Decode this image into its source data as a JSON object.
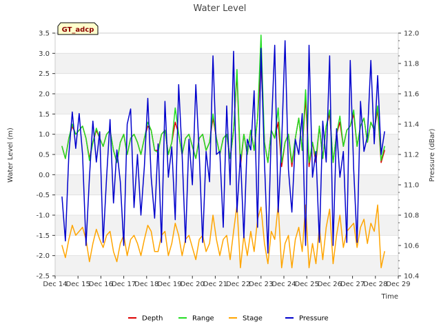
{
  "chart_data": {
    "type": "line",
    "title": "Water Level",
    "xlabel": "Time",
    "ylabel": "Water Level (m)",
    "y2label": "Pressure (dBar)",
    "badge": "GT_adcp",
    "xlim": [
      14,
      29
    ],
    "ylim": [
      -2.5,
      3.5
    ],
    "y2lim": [
      10.4,
      12.0
    ],
    "xticks": [
      14,
      15,
      16,
      17,
      18,
      19,
      20,
      21,
      22,
      23,
      24,
      25,
      26,
      27,
      28,
      29
    ],
    "xtick_labels": [
      "Dec 14",
      "Dec 15",
      "Dec 16",
      "Dec 17",
      "Dec 18",
      "Dec 19",
      "Dec 20",
      "Dec 21",
      "Dec 22",
      "Dec 23",
      "Dec 24",
      "Dec 25",
      "Dec 26",
      "Dec 27",
      "Dec 28",
      "Dec 29"
    ],
    "yticks": [
      -2.5,
      -2.0,
      -1.5,
      -1.0,
      -0.5,
      0.0,
      0.5,
      1.0,
      1.5,
      2.0,
      2.5,
      3.0,
      3.5
    ],
    "ytick_labels": [
      "-2.5",
      "-2.0",
      "-1.5",
      "-1.0",
      "-0.5",
      "0.0",
      "0.5",
      "1.0",
      "1.5",
      "2.0",
      "2.5",
      "3.0",
      "3.5"
    ],
    "y2ticks": [
      10.4,
      10.6,
      10.8,
      11.0,
      11.2,
      11.4,
      11.6,
      11.8,
      12.0
    ],
    "y2tick_labels": [
      "10.4",
      "10.6",
      "10.8",
      "11.0",
      "11.2",
      "11.4",
      "11.6",
      "11.8",
      "12.0"
    ],
    "legend_position": "bottom-center",
    "series": [
      {
        "name": "Depth",
        "color": "#dd0000",
        "axis": "left",
        "x": [
          14.3,
          14.45,
          14.6,
          14.75,
          14.9,
          15.05,
          15.2,
          15.35,
          15.5,
          15.65,
          15.8,
          15.95,
          16.1,
          16.25,
          16.4,
          16.55,
          16.7,
          16.85,
          17.0,
          17.15,
          17.3,
          17.45,
          17.6,
          17.75,
          17.9,
          18.05,
          18.2,
          18.35,
          18.5,
          18.65,
          18.8,
          18.95,
          19.1,
          19.25,
          19.4,
          19.55,
          19.7,
          19.85,
          20.0,
          20.15,
          20.3,
          20.45,
          20.6,
          20.75,
          20.9,
          21.05,
          21.2,
          21.35,
          21.5,
          21.65,
          21.8,
          21.95,
          22.1,
          22.25,
          22.4,
          22.55,
          22.7,
          22.85,
          23.0,
          23.15,
          23.3,
          23.45,
          23.6,
          23.75,
          23.9,
          24.05,
          24.2,
          24.35,
          24.5,
          24.65,
          24.8,
          24.95,
          25.1,
          25.25,
          25.4,
          25.55,
          25.7,
          25.85,
          26.0,
          26.15,
          26.3,
          26.45,
          26.6,
          26.75,
          26.9,
          27.05,
          27.2,
          27.35,
          27.5,
          27.65,
          27.8,
          27.95,
          28.1,
          28.25,
          28.4
        ],
        "y": [
          0.7,
          0.4,
          0.9,
          1.2,
          1.0,
          1.1,
          1.2,
          0.9,
          0.4,
          0.8,
          1.1,
          0.9,
          0.7,
          1.0,
          1.1,
          0.6,
          0.3,
          0.8,
          1.0,
          0.5,
          0.9,
          1.0,
          0.8,
          0.5,
          0.9,
          1.2,
          1.1,
          0.6,
          0.6,
          1.0,
          1.1,
          0.5,
          0.8,
          1.3,
          1.0,
          0.5,
          0.9,
          1.0,
          0.7,
          0.4,
          0.9,
          1.0,
          0.6,
          0.8,
          1.4,
          0.9,
          0.5,
          0.9,
          1.0,
          0.4,
          1.1,
          2.5,
          0.2,
          1.0,
          0.5,
          1.1,
          0.6,
          1.4,
          2.8,
          0.8,
          0.3,
          1.1,
          0.9,
          1.3,
          0.2,
          0.8,
          1.0,
          0.2,
          0.9,
          1.4,
          0.6,
          1.9,
          0.2,
          0.8,
          0.3,
          1.2,
          0.4,
          1.2,
          1.5,
          0.3,
          1.0,
          1.3,
          0.7,
          1.1,
          1.2,
          1.5,
          0.7,
          1.2,
          1.4,
          0.8,
          1.3,
          1.1,
          1.6,
          0.3,
          0.6
        ]
      },
      {
        "name": "Range",
        "color": "#22dd22",
        "axis": "left",
        "x": [
          14.3,
          14.45,
          14.6,
          14.75,
          14.9,
          15.05,
          15.2,
          15.35,
          15.5,
          15.65,
          15.8,
          15.95,
          16.1,
          16.25,
          16.4,
          16.55,
          16.7,
          16.85,
          17.0,
          17.15,
          17.3,
          17.45,
          17.6,
          17.75,
          17.9,
          18.05,
          18.2,
          18.35,
          18.5,
          18.65,
          18.8,
          18.95,
          19.1,
          19.25,
          19.4,
          19.55,
          19.7,
          19.85,
          20.0,
          20.15,
          20.3,
          20.45,
          20.6,
          20.75,
          20.9,
          21.05,
          21.2,
          21.35,
          21.5,
          21.65,
          21.8,
          21.95,
          22.1,
          22.25,
          22.4,
          22.55,
          22.7,
          22.85,
          23.0,
          23.15,
          23.3,
          23.45,
          23.6,
          23.75,
          23.9,
          24.05,
          24.2,
          24.35,
          24.5,
          24.65,
          24.8,
          24.95,
          25.1,
          25.25,
          25.4,
          25.55,
          25.7,
          25.85,
          26.0,
          26.15,
          26.3,
          26.45,
          26.6,
          26.75,
          26.9,
          27.05,
          27.2,
          27.35,
          27.5,
          27.65,
          27.8,
          27.95,
          28.1,
          28.25,
          28.4
        ],
        "y": [
          0.7,
          0.4,
          0.9,
          1.25,
          1.0,
          1.1,
          1.2,
          0.9,
          0.35,
          0.8,
          1.15,
          0.9,
          0.7,
          1.0,
          1.1,
          0.6,
          0.3,
          0.8,
          1.0,
          0.5,
          0.9,
          1.0,
          0.8,
          0.5,
          0.9,
          1.3,
          1.1,
          0.6,
          0.55,
          1.0,
          1.1,
          0.5,
          0.8,
          1.65,
          1.0,
          0.5,
          0.9,
          1.0,
          0.7,
          0.4,
          0.9,
          1.0,
          0.6,
          0.8,
          1.5,
          0.9,
          0.5,
          0.9,
          1.0,
          0.4,
          1.1,
          2.6,
          0.3,
          1.0,
          0.5,
          1.1,
          0.6,
          1.4,
          3.45,
          0.8,
          0.3,
          1.1,
          0.9,
          1.65,
          0.3,
          0.8,
          1.0,
          0.3,
          0.9,
          1.4,
          0.6,
          2.1,
          0.3,
          0.8,
          0.4,
          1.2,
          0.4,
          1.2,
          1.6,
          0.3,
          1.0,
          1.45,
          0.7,
          1.1,
          1.2,
          1.6,
          0.7,
          1.2,
          1.4,
          0.8,
          1.3,
          1.1,
          1.7,
          0.35,
          0.7
        ]
      },
      {
        "name": "Stage",
        "color": "#ffa500",
        "axis": "left",
        "x": [
          14.3,
          14.45,
          14.6,
          14.75,
          14.9,
          15.05,
          15.2,
          15.35,
          15.5,
          15.65,
          15.8,
          15.95,
          16.1,
          16.25,
          16.4,
          16.55,
          16.7,
          16.85,
          17.0,
          17.15,
          17.3,
          17.45,
          17.6,
          17.75,
          17.9,
          18.05,
          18.2,
          18.35,
          18.5,
          18.65,
          18.8,
          18.95,
          19.1,
          19.25,
          19.4,
          19.55,
          19.7,
          19.85,
          20.0,
          20.15,
          20.3,
          20.45,
          20.6,
          20.75,
          20.9,
          21.05,
          21.2,
          21.35,
          21.5,
          21.65,
          21.8,
          21.95,
          22.1,
          22.25,
          22.4,
          22.55,
          22.7,
          22.85,
          23.0,
          23.15,
          23.3,
          23.45,
          23.6,
          23.75,
          23.9,
          24.05,
          24.2,
          24.35,
          24.5,
          24.65,
          24.8,
          24.95,
          25.1,
          25.25,
          25.4,
          25.55,
          25.7,
          25.85,
          26.0,
          26.15,
          26.3,
          26.45,
          26.6,
          26.75,
          26.9,
          27.05,
          27.2,
          27.35,
          27.5,
          27.65,
          27.8,
          27.95,
          28.1,
          28.25,
          28.4
        ],
        "y": [
          -1.75,
          -2.05,
          -1.6,
          -1.25,
          -1.5,
          -1.4,
          -1.3,
          -1.6,
          -2.15,
          -1.7,
          -1.35,
          -1.6,
          -1.8,
          -1.5,
          -1.4,
          -1.9,
          -2.15,
          -1.7,
          -1.5,
          -2.0,
          -1.6,
          -1.5,
          -1.7,
          -2.0,
          -1.6,
          -1.25,
          -1.4,
          -1.9,
          -1.9,
          -1.5,
          -1.4,
          -2.0,
          -1.7,
          -1.2,
          -1.5,
          -2.0,
          -1.6,
          -1.5,
          -1.8,
          -2.1,
          -1.6,
          -1.5,
          -1.9,
          -1.7,
          -1.0,
          -1.6,
          -2.0,
          -1.6,
          -1.5,
          -2.1,
          -1.4,
          -0.75,
          -2.3,
          -1.5,
          -2.0,
          -1.4,
          -1.9,
          -1.1,
          -0.8,
          -1.7,
          -2.2,
          -1.4,
          -1.6,
          -0.75,
          -2.3,
          -1.7,
          -1.5,
          -2.3,
          -1.6,
          -1.3,
          -1.9,
          -0.75,
          -2.3,
          -1.7,
          -2.2,
          -1.3,
          -2.1,
          -1.3,
          -0.85,
          -2.2,
          -1.5,
          -1.0,
          -1.8,
          -1.4,
          -1.3,
          -1.2,
          -1.8,
          -1.3,
          -1.1,
          -1.7,
          -1.2,
          -1.4,
          -0.75,
          -2.3,
          -1.9
        ]
      },
      {
        "name": "Pressure",
        "color": "#0000cc",
        "axis": "right",
        "x": [
          14.3,
          14.45,
          14.6,
          14.75,
          14.9,
          15.05,
          15.2,
          15.35,
          15.5,
          15.65,
          15.8,
          15.95,
          16.1,
          16.25,
          16.4,
          16.55,
          16.7,
          16.85,
          17.0,
          17.15,
          17.3,
          17.45,
          17.6,
          17.75,
          17.9,
          18.05,
          18.2,
          18.35,
          18.5,
          18.65,
          18.8,
          18.95,
          19.1,
          19.25,
          19.4,
          19.55,
          19.7,
          19.85,
          20.0,
          20.15,
          20.3,
          20.45,
          20.6,
          20.75,
          20.9,
          21.05,
          21.2,
          21.35,
          21.5,
          21.65,
          21.8,
          21.95,
          22.1,
          22.25,
          22.4,
          22.55,
          22.7,
          22.85,
          23.0,
          23.15,
          23.3,
          23.45,
          23.6,
          23.75,
          23.9,
          24.05,
          24.2,
          24.35,
          24.5,
          24.65,
          24.8,
          24.95,
          25.1,
          25.25,
          25.4,
          25.55,
          25.7,
          25.85,
          26.0,
          26.15,
          26.3,
          26.45,
          26.6,
          26.75,
          26.9,
          27.05,
          27.2,
          27.35,
          27.5,
          27.65,
          27.8,
          27.95,
          28.1,
          28.25,
          28.4
        ],
        "y": [
          10.92,
          10.63,
          11.2,
          11.48,
          11.24,
          11.47,
          11.2,
          10.6,
          11.05,
          11.42,
          11.15,
          11.35,
          10.62,
          11.05,
          11.43,
          10.88,
          11.23,
          11.02,
          10.6,
          11.4,
          11.5,
          10.85,
          11.2,
          10.8,
          11.12,
          11.57,
          11.05,
          10.78,
          11.27,
          10.62,
          11.55,
          11.05,
          11.25,
          10.77,
          11.66,
          11.2,
          10.62,
          11.3,
          11.0,
          11.66,
          11.2,
          10.62,
          11.22,
          11.02,
          11.85,
          11.2,
          11.22,
          10.72,
          11.52,
          11.0,
          11.88,
          10.82,
          11.2,
          10.65,
          11.3,
          11.23,
          11.62,
          10.72,
          11.9,
          11.15,
          10.55,
          11.35,
          11.92,
          10.82,
          11.27,
          11.95,
          11.1,
          10.82,
          11.3,
          11.2,
          11.47,
          10.6,
          11.92,
          11.05,
          11.22,
          10.62,
          11.42,
          11.15,
          11.85,
          10.6,
          11.37,
          11.05,
          11.22,
          10.62,
          11.82,
          11.1,
          10.62,
          11.55,
          11.22,
          11.32,
          11.82,
          11.27,
          11.72,
          11.2,
          11.35
        ]
      }
    ]
  }
}
